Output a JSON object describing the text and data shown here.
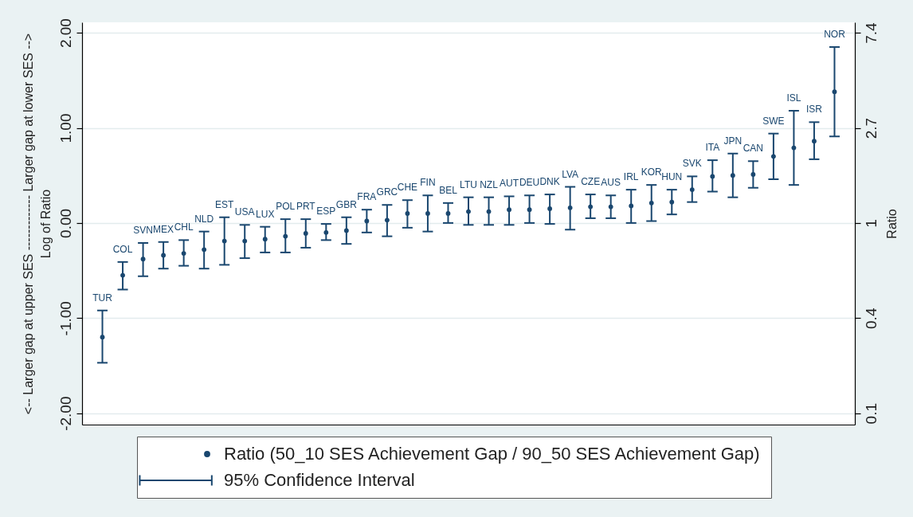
{
  "chart_data": {
    "type": "scatter",
    "ylabel": "<-- Larger gap at upper SES ------------- Larger gap at lower SES -->\nLog of Ratio",
    "y2label": "Ratio",
    "categories": [
      "TUR",
      "COL",
      "SVN",
      "MEX",
      "CHL",
      "NLD",
      "EST",
      "USA",
      "LUX",
      "POL",
      "PRT",
      "ESP",
      "GBR",
      "FRA",
      "GRC",
      "CHE",
      "FIN",
      "BEL",
      "LTU",
      "NZL",
      "AUT",
      "DEU",
      "DNK",
      "LVA",
      "CZE",
      "AUS",
      "IRL",
      "KOR",
      "HUN",
      "SVK",
      "ITA",
      "JPN",
      "CAN",
      "SWE",
      "ISL",
      "ISR",
      "NOR"
    ],
    "series": [
      {
        "name": "Ratio (50_10 SES Achievement Gap / 90_50 SES Achievement Gap)",
        "color": "#1a476f",
        "values": [
          -1.2,
          -0.55,
          -0.38,
          -0.34,
          -0.32,
          -0.28,
          -0.19,
          -0.19,
          -0.17,
          -0.14,
          -0.11,
          -0.1,
          -0.08,
          0.02,
          0.03,
          0.1,
          0.1,
          0.1,
          0.12,
          0.12,
          0.14,
          0.14,
          0.15,
          0.16,
          0.17,
          0.17,
          0.18,
          0.21,
          0.22,
          0.35,
          0.49,
          0.5,
          0.51,
          0.7,
          0.79,
          0.86,
          1.38
        ],
        "errors": [
          [
            -1.47,
            -0.92
          ],
          [
            -0.7,
            -0.41
          ],
          [
            -0.56,
            -0.21
          ],
          [
            -0.48,
            -0.2
          ],
          [
            -0.45,
            -0.18
          ],
          [
            -0.48,
            -0.09
          ],
          [
            -0.44,
            0.06
          ],
          [
            -0.37,
            -0.02
          ],
          [
            -0.31,
            -0.04
          ],
          [
            -0.31,
            0.04
          ],
          [
            -0.26,
            0.04
          ],
          [
            -0.18,
            -0.01
          ],
          [
            -0.22,
            0.06
          ],
          [
            -0.1,
            0.14
          ],
          [
            -0.14,
            0.19
          ],
          [
            -0.05,
            0.24
          ],
          [
            -0.09,
            0.29
          ],
          [
            0.0,
            0.21
          ],
          [
            -0.02,
            0.27
          ],
          [
            -0.02,
            0.27
          ],
          [
            -0.02,
            0.28
          ],
          [
            0.0,
            0.29
          ],
          [
            -0.01,
            0.3
          ],
          [
            -0.07,
            0.38
          ],
          [
            0.05,
            0.3
          ],
          [
            0.05,
            0.29
          ],
          [
            0.0,
            0.35
          ],
          [
            0.02,
            0.4
          ],
          [
            0.09,
            0.35
          ],
          [
            0.22,
            0.49
          ],
          [
            0.33,
            0.66
          ],
          [
            0.27,
            0.73
          ],
          [
            0.37,
            0.65
          ],
          [
            0.46,
            0.94
          ],
          [
            0.4,
            1.18
          ],
          [
            0.67,
            1.06
          ],
          [
            0.91,
            1.85
          ]
        ]
      }
    ],
    "ylim": [
      -2.12,
      2.11
    ],
    "yticks": [
      {
        "value": -2,
        "label": "-2.00"
      },
      {
        "value": -1,
        "label": "-1.00"
      },
      {
        "value": 0,
        "label": "0.00"
      },
      {
        "value": 1,
        "label": "1.00"
      },
      {
        "value": 2,
        "label": "2.00"
      }
    ],
    "y2lim": [
      0.12,
      8.25
    ],
    "y2ticks": [
      {
        "value": 0.1353,
        "label": "0.1"
      },
      {
        "value": 0.3679,
        "label": "0.4"
      },
      1,
      {
        "value": 2.718,
        "label": "2.7"
      },
      {
        "value": 7.389,
        "label": "7.4"
      }
    ],
    "log": "y2",
    "grid": "y",
    "marker": "circle",
    "legend": "bottom",
    "annotations": [
      "95% Confidence Interval"
    ]
  }
}
